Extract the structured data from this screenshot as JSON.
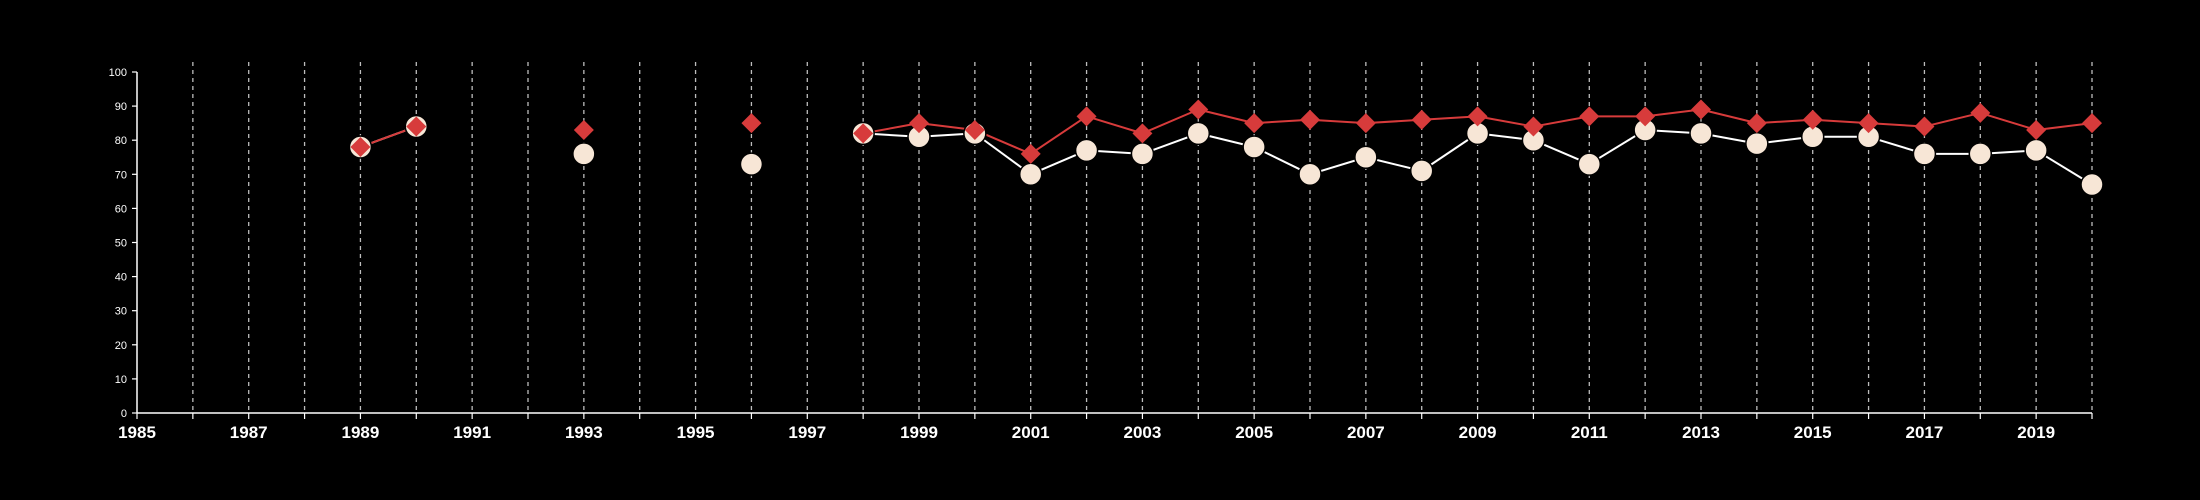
{
  "chart_data": {
    "type": "line",
    "title": "",
    "xlabel": "",
    "ylabel": "",
    "xlim": [
      1985,
      2020
    ],
    "ylim": [
      0,
      100
    ],
    "yticks": [
      0,
      10,
      20,
      30,
      40,
      50,
      60,
      70,
      80,
      90,
      100
    ],
    "xticks": [
      1985,
      1987,
      1989,
      1991,
      1993,
      1995,
      1997,
      1999,
      2001,
      2003,
      2005,
      2007,
      2009,
      2011,
      2013,
      2015,
      2017,
      2019
    ],
    "grid": "vertical dashed lines at every year",
    "legend": "none",
    "series": [
      {
        "marker": "circle",
        "color": "#f7e6d6",
        "line_color": "#ffffff",
        "points": [
          [
            1989,
            78
          ],
          [
            1990,
            84
          ],
          [
            1993,
            76
          ],
          [
            1996,
            73
          ],
          [
            1998,
            82
          ],
          [
            1999,
            81
          ],
          [
            2000,
            82
          ],
          [
            2001,
            70
          ],
          [
            2002,
            77
          ],
          [
            2003,
            76
          ],
          [
            2004,
            82
          ],
          [
            2005,
            78
          ],
          [
            2006,
            70
          ],
          [
            2007,
            75
          ],
          [
            2008,
            71
          ],
          [
            2009,
            82
          ],
          [
            2010,
            80
          ],
          [
            2011,
            73
          ],
          [
            2012,
            83
          ],
          [
            2013,
            82
          ],
          [
            2014,
            79
          ],
          [
            2015,
            81
          ],
          [
            2016,
            81
          ],
          [
            2017,
            76
          ],
          [
            2018,
            76
          ],
          [
            2019,
            77
          ],
          [
            2020,
            67
          ]
        ]
      },
      {
        "marker": "diamond",
        "color": "#d73b3b",
        "line_color": "#d73b3b",
        "points": [
          [
            1989,
            78
          ],
          [
            1990,
            84
          ],
          [
            1993,
            83
          ],
          [
            1996,
            85
          ],
          [
            1998,
            82
          ],
          [
            1999,
            85
          ],
          [
            2000,
            83
          ],
          [
            2001,
            76
          ],
          [
            2002,
            87
          ],
          [
            2003,
            82
          ],
          [
            2004,
            89
          ],
          [
            2005,
            85
          ],
          [
            2006,
            86
          ],
          [
            2007,
            85
          ],
          [
            2008,
            86
          ],
          [
            2009,
            87
          ],
          [
            2010,
            84
          ],
          [
            2011,
            87
          ],
          [
            2012,
            87
          ],
          [
            2013,
            89
          ],
          [
            2014,
            85
          ],
          [
            2015,
            86
          ],
          [
            2016,
            85
          ],
          [
            2017,
            84
          ],
          [
            2018,
            88
          ],
          [
            2019,
            83
          ],
          [
            2020,
            85
          ]
        ]
      }
    ]
  }
}
